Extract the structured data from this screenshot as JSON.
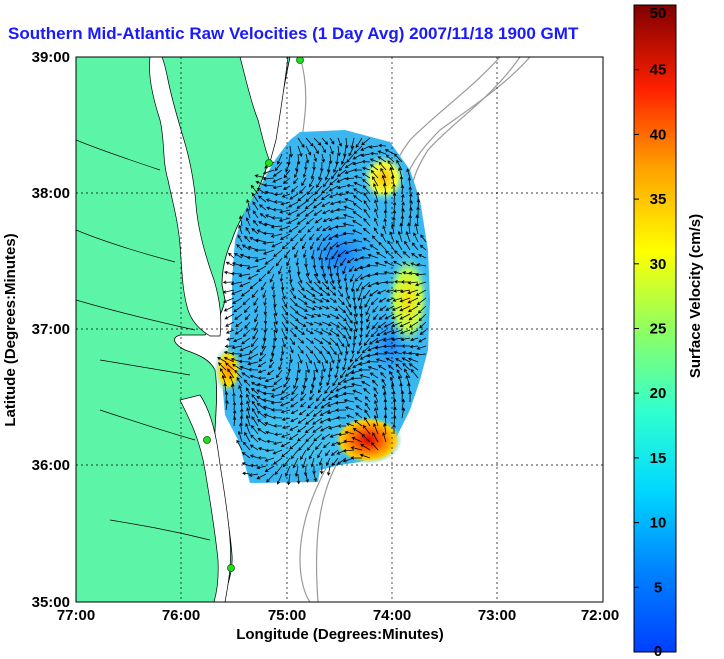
{
  "title": "Southern Mid-Atlantic Raw Velocities (1 Day Avg) 2007/11/18 1900 GMT",
  "x_axis": {
    "label": "Longitude (Degrees:Minutes)",
    "ticks": [
      "77:00",
      "76:00",
      "75:00",
      "74:00",
      "73:00",
      "72:00"
    ]
  },
  "y_axis": {
    "label": "Latitude (Degrees:Minutes)",
    "ticks": [
      "39:00",
      "38:00",
      "37:00",
      "36:00",
      "35:00"
    ]
  },
  "colorbar": {
    "label": "Surface Velocity (cm/s)",
    "min": 0,
    "max": 50,
    "ticks": [
      "0",
      "5",
      "10",
      "15",
      "20",
      "25",
      "30",
      "35",
      "40",
      "45",
      "50"
    ]
  },
  "map_extent": {
    "lon_west": -77,
    "lon_east": -72,
    "lat_south": 35,
    "lat_north": 39
  },
  "colors": {
    "land": "#5cf5a8",
    "coast": "#000000",
    "bathymetry": "#9a9a9a",
    "title": "#1a1aff",
    "station": "#22dd22"
  },
  "grid": true
}
